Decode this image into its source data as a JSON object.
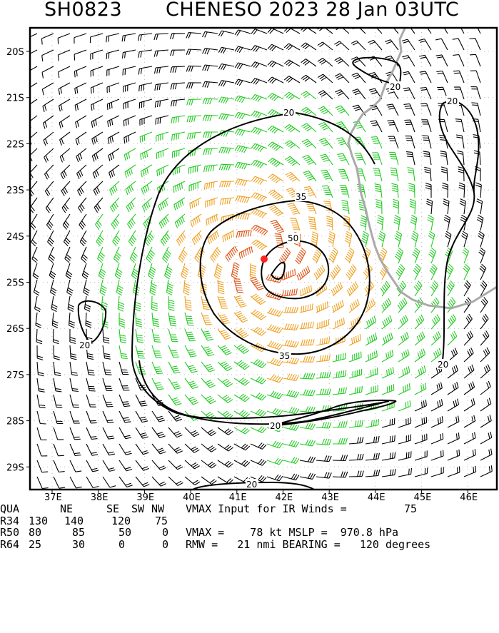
{
  "title": {
    "storm_id": "SH0823",
    "name_date": "CHENESO 2023 28 Jan 03UTC"
  },
  "colors": {
    "calm": "#000000",
    "gale": "#22cc22",
    "storm": "#f0a020",
    "hurricane": "#e05010",
    "coast": "#aaaaaa",
    "center": "#ff2222"
  },
  "axes": {
    "lat_labels": [
      "20S",
      "21S",
      "22S",
      "23S",
      "24S",
      "25S",
      "26S",
      "27S",
      "28S",
      "29S"
    ],
    "lon_labels": [
      "37E",
      "38E",
      "39E",
      "40E",
      "41E",
      "42E",
      "43E",
      "44E",
      "45E",
      "46E"
    ]
  },
  "contour_labels": {
    "c20_top": "20",
    "c20_ne": "20",
    "c20_right": "20",
    "c20_islet": "20",
    "c20_east": "20",
    "c20_west": "20",
    "c20_south": "20",
    "c20_bottom": "20",
    "c35_top": "35",
    "c35_bottom": "35",
    "c50": "50"
  },
  "table": {
    "header": {
      "q": "QUA",
      "ne": "NE",
      "se": "SE",
      "sw": "SW",
      "nw": "NW",
      "vmax_input": "VMAX Input for IR Winds =",
      "vmax_input_val": "75"
    },
    "r34": {
      "label": "R34",
      "ne": "130",
      "se": "140",
      "sw": "120",
      "nw": "75"
    },
    "r50": {
      "label": "R50",
      "ne": "80",
      "se": "85",
      "sw": "50",
      "nw": "0",
      "text": "VMAX =    78 kt MSLP =  970.8 hPa"
    },
    "r64": {
      "label": "R64",
      "ne": "25",
      "se": "30",
      "sw": "0",
      "nw": "0",
      "text": "RMW =   21 nmi BEARING =   120 degrees"
    }
  }
}
